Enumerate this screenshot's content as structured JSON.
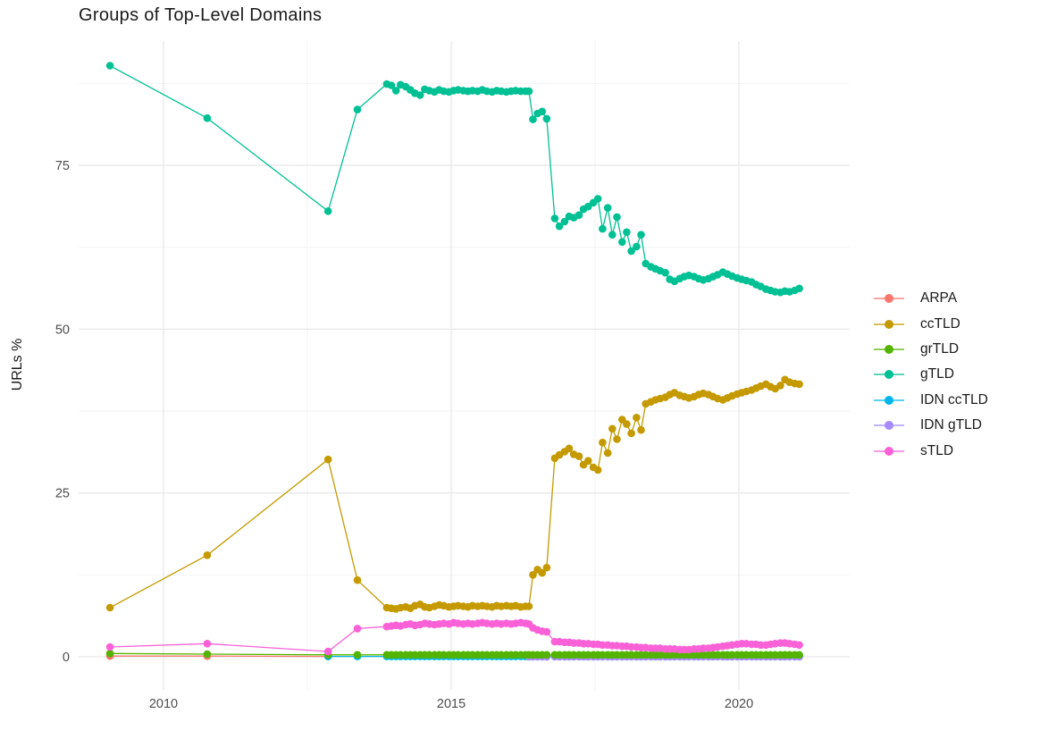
{
  "chart_data": {
    "type": "line",
    "title": "Groups of Top-Level Domains",
    "xlabel": "",
    "ylabel": "URLs %",
    "x_ticks": [
      2010,
      2015,
      2020
    ],
    "x_minor": [
      2012.5,
      2017.5
    ],
    "y_ticks": [
      0,
      25,
      50,
      75
    ],
    "y_minor": [
      12.5,
      37.5,
      62.5,
      87.5
    ],
    "xlim": [
      2008.525,
      2021.925
    ],
    "ylim": [
      -5.05,
      93.95
    ],
    "grid": true,
    "legend_position": "right",
    "colors": {
      "grid_major": "#e6e6e6",
      "grid_minor": "#f2f2f2",
      "axis_text": "#4d4d4d",
      "title_text": "#1a1a1a"
    },
    "draw_order": [
      "ARPA",
      "IDN ccTLD",
      "IDN gTLD",
      "grTLD",
      "ccTLD",
      "gTLD",
      "sTLD"
    ],
    "series": [
      {
        "name": "ARPA",
        "color": "#F8766D",
        "x": [
          2009.07,
          2010.76,
          2012.86
        ],
        "y": [
          0.1,
          0.1,
          0.05
        ]
      },
      {
        "name": "ccTLD",
        "color": "#C49A00",
        "x": [
          2009.07,
          2010.76,
          2012.86,
          2013.37,
          2013.88,
          2013.96,
          2014.04,
          2014.12,
          2014.21,
          2014.29,
          2014.37,
          2014.46,
          2014.54,
          2014.62,
          2014.71,
          2014.79,
          2014.87,
          2014.96,
          2015.04,
          2015.12,
          2015.21,
          2015.29,
          2015.37,
          2015.46,
          2015.54,
          2015.62,
          2015.71,
          2015.79,
          2015.87,
          2015.96,
          2016.04,
          2016.12,
          2016.21,
          2016.29,
          2016.35,
          2016.42,
          2016.5,
          2016.58,
          2016.66,
          2016.8,
          2016.88,
          2016.97,
          2017.05,
          2017.13,
          2017.22,
          2017.3,
          2017.38,
          2017.47,
          2017.55,
          2017.63,
          2017.72,
          2017.8,
          2017.88,
          2017.97,
          2018.05,
          2018.13,
          2018.22,
          2018.3,
          2018.38,
          2018.47,
          2018.55,
          2018.63,
          2018.72,
          2018.8,
          2018.88,
          2018.97,
          2019.05,
          2019.13,
          2019.22,
          2019.3,
          2019.38,
          2019.47,
          2019.55,
          2019.63,
          2019.72,
          2019.8,
          2019.88,
          2019.97,
          2020.05,
          2020.13,
          2020.22,
          2020.3,
          2020.38,
          2020.47,
          2020.55,
          2020.63,
          2020.72,
          2020.8,
          2020.88,
          2020.97,
          2021.05
        ],
        "y": [
          7.5,
          15.5,
          30.1,
          11.7,
          7.5,
          7.4,
          7.3,
          7.5,
          7.6,
          7.4,
          7.8,
          8.0,
          7.6,
          7.5,
          7.7,
          7.9,
          7.8,
          7.6,
          7.7,
          7.8,
          7.7,
          7.6,
          7.8,
          7.7,
          7.8,
          7.7,
          7.6,
          7.8,
          7.7,
          7.8,
          7.7,
          7.8,
          7.6,
          7.7,
          7.7,
          12.5,
          13.3,
          12.8,
          13.6,
          30.3,
          30.8,
          31.3,
          31.8,
          30.9,
          30.6,
          29.3,
          29.9,
          28.9,
          28.5,
          32.7,
          31.1,
          34.8,
          33.2,
          36.2,
          35.5,
          34.1,
          36.5,
          34.6,
          38.6,
          38.9,
          39.2,
          39.4,
          39.6,
          40.0,
          40.3,
          39.9,
          39.7,
          39.5,
          39.7,
          40.0,
          40.2,
          40.0,
          39.7,
          39.4,
          39.2,
          39.5,
          39.8,
          40.1,
          40.3,
          40.5,
          40.7,
          41.0,
          41.3,
          41.6,
          41.2,
          40.9,
          41.4,
          42.3,
          41.9,
          41.7,
          41.6
        ]
      },
      {
        "name": "grTLD",
        "color": "#53B400",
        "x": [
          2009.07,
          2010.76,
          2012.86,
          2013.37,
          2013.88,
          2013.96,
          2014.04,
          2014.12,
          2014.21,
          2014.29,
          2014.37,
          2014.46,
          2014.54,
          2014.62,
          2014.71,
          2014.79,
          2014.87,
          2014.96,
          2015.04,
          2015.12,
          2015.21,
          2015.29,
          2015.37,
          2015.46,
          2015.54,
          2015.62,
          2015.71,
          2015.79,
          2015.87,
          2015.96,
          2016.04,
          2016.12,
          2016.21,
          2016.29,
          2016.35,
          2016.42,
          2016.5,
          2016.58,
          2016.66,
          2016.8,
          2016.88,
          2016.97,
          2017.05,
          2017.13,
          2017.22,
          2017.3,
          2017.38,
          2017.47,
          2017.55,
          2017.63,
          2017.72,
          2017.8,
          2017.88,
          2017.97,
          2018.05,
          2018.13,
          2018.22,
          2018.3,
          2018.38,
          2018.47,
          2018.55,
          2018.63,
          2018.72,
          2018.8,
          2018.88,
          2018.97,
          2019.05,
          2019.13,
          2019.22,
          2019.3,
          2019.38,
          2019.47,
          2019.55,
          2019.63,
          2019.72,
          2019.8,
          2019.88,
          2019.97,
          2020.05,
          2020.13,
          2020.22,
          2020.3,
          2020.38,
          2020.47,
          2020.55,
          2020.63,
          2020.72,
          2020.8,
          2020.88,
          2020.97,
          2021.05
        ],
        "y": [
          0.5,
          0.4,
          0.3,
          0.3,
          0.3,
          0.3,
          0.3,
          0.3,
          0.3,
          0.3,
          0.3,
          0.3,
          0.3,
          0.3,
          0.3,
          0.3,
          0.3,
          0.3,
          0.3,
          0.3,
          0.3,
          0.3,
          0.3,
          0.3,
          0.3,
          0.3,
          0.3,
          0.3,
          0.3,
          0.3,
          0.3,
          0.3,
          0.3,
          0.3,
          0.3,
          0.3,
          0.3,
          0.3,
          0.3,
          0.3,
          0.3,
          0.3,
          0.3,
          0.3,
          0.3,
          0.3,
          0.3,
          0.3,
          0.3,
          0.3,
          0.3,
          0.3,
          0.3,
          0.3,
          0.3,
          0.3,
          0.3,
          0.3,
          0.3,
          0.3,
          0.3,
          0.3,
          0.3,
          0.3,
          0.3,
          0.3,
          0.3,
          0.3,
          0.3,
          0.3,
          0.3,
          0.3,
          0.3,
          0.3,
          0.3,
          0.3,
          0.3,
          0.3,
          0.3,
          0.3,
          0.3,
          0.3,
          0.3,
          0.3,
          0.3,
          0.3,
          0.3,
          0.3,
          0.3,
          0.3,
          0.3
        ]
      },
      {
        "name": "gTLD",
        "color": "#00C094",
        "x": [
          2009.07,
          2010.76,
          2012.86,
          2013.37,
          2013.88,
          2013.96,
          2014.04,
          2014.12,
          2014.21,
          2014.29,
          2014.37,
          2014.46,
          2014.54,
          2014.62,
          2014.71,
          2014.79,
          2014.87,
          2014.96,
          2015.04,
          2015.12,
          2015.21,
          2015.29,
          2015.37,
          2015.46,
          2015.54,
          2015.62,
          2015.71,
          2015.79,
          2015.87,
          2015.96,
          2016.04,
          2016.12,
          2016.21,
          2016.29,
          2016.35,
          2016.42,
          2016.5,
          2016.58,
          2016.66,
          2016.8,
          2016.88,
          2016.97,
          2017.05,
          2017.13,
          2017.22,
          2017.3,
          2017.38,
          2017.47,
          2017.55,
          2017.63,
          2017.72,
          2017.8,
          2017.88,
          2017.97,
          2018.05,
          2018.13,
          2018.22,
          2018.3,
          2018.38,
          2018.47,
          2018.55,
          2018.63,
          2018.72,
          2018.8,
          2018.88,
          2018.97,
          2019.05,
          2019.13,
          2019.22,
          2019.3,
          2019.38,
          2019.47,
          2019.55,
          2019.63,
          2019.72,
          2019.8,
          2019.88,
          2019.97,
          2020.05,
          2020.13,
          2020.22,
          2020.3,
          2020.38,
          2020.47,
          2020.55,
          2020.63,
          2020.72,
          2020.8,
          2020.88,
          2020.97,
          2021.05
        ],
        "y": [
          90.2,
          82.2,
          68.0,
          83.5,
          87.4,
          87.2,
          86.4,
          87.3,
          87.0,
          86.5,
          86.0,
          85.7,
          86.6,
          86.4,
          86.2,
          86.5,
          86.3,
          86.2,
          86.4,
          86.5,
          86.4,
          86.3,
          86.4,
          86.3,
          86.5,
          86.3,
          86.2,
          86.4,
          86.3,
          86.2,
          86.3,
          86.4,
          86.3,
          86.3,
          86.3,
          82.0,
          82.9,
          83.2,
          82.1,
          66.9,
          65.7,
          66.4,
          67.2,
          67.0,
          67.4,
          68.3,
          68.7,
          69.3,
          69.9,
          65.3,
          68.5,
          64.4,
          67.1,
          63.3,
          64.8,
          61.9,
          62.6,
          64.4,
          60.0,
          59.5,
          59.2,
          58.9,
          58.6,
          57.6,
          57.3,
          57.7,
          58.0,
          58.2,
          58.0,
          57.7,
          57.5,
          57.7,
          58.0,
          58.3,
          58.7,
          58.4,
          58.1,
          57.8,
          57.6,
          57.4,
          57.2,
          56.8,
          56.5,
          56.1,
          55.9,
          55.7,
          55.6,
          55.8,
          55.7,
          55.9,
          56.2
        ]
      },
      {
        "name": "IDN ccTLD",
        "color": "#00B6EB",
        "x": [
          2012.86,
          2013.37,
          2013.88,
          2013.96,
          2014.04,
          2014.12,
          2014.21,
          2014.29,
          2014.37,
          2014.46,
          2014.54,
          2014.62,
          2014.71,
          2014.79,
          2014.87,
          2014.96,
          2015.04,
          2015.12,
          2015.21,
          2015.29,
          2015.37,
          2015.46,
          2015.54,
          2015.62,
          2015.71,
          2015.79,
          2015.87,
          2015.96,
          2016.04,
          2016.12,
          2016.21,
          2016.29,
          2016.35,
          2016.42,
          2016.5,
          2016.58,
          2016.66,
          2016.8,
          2016.88,
          2016.97,
          2017.05,
          2017.13,
          2017.22,
          2017.3,
          2017.38,
          2017.47,
          2017.55,
          2017.63,
          2017.72,
          2017.8,
          2017.88,
          2017.97,
          2018.05,
          2018.13,
          2018.22,
          2018.3,
          2018.38,
          2018.47,
          2018.55,
          2018.63,
          2018.72,
          2018.8,
          2018.88,
          2018.97,
          2019.05,
          2019.13,
          2019.22,
          2019.3,
          2019.38,
          2019.47,
          2019.55,
          2019.63,
          2019.72,
          2019.8,
          2019.88,
          2019.97,
          2020.05,
          2020.13,
          2020.22,
          2020.3,
          2020.38,
          2020.47,
          2020.55,
          2020.63,
          2020.72,
          2020.8,
          2020.88,
          2020.97,
          2021.05
        ],
        "y": [
          0.05,
          0.05,
          0.05,
          0.05,
          0.05,
          0.05,
          0.05,
          0.05,
          0.05,
          0.05,
          0.05,
          0.05,
          0.05,
          0.05,
          0.05,
          0.05,
          0.05,
          0.05,
          0.05,
          0.05,
          0.05,
          0.05,
          0.05,
          0.05,
          0.05,
          0.05,
          0.05,
          0.05,
          0.05,
          0.05,
          0.05,
          0.05,
          0.05,
          0.05,
          0.05,
          0.05,
          0.05,
          0.05,
          0.05,
          0.05,
          0.05,
          0.05,
          0.05,
          0.05,
          0.05,
          0.05,
          0.05,
          0.05,
          0.05,
          0.05,
          0.05,
          0.05,
          0.05,
          0.05,
          0.05,
          0.05,
          0.05,
          0.05,
          0.05,
          0.05,
          0.05,
          0.05,
          0.05,
          0.05,
          0.05,
          0.05,
          0.05,
          0.05,
          0.05,
          0.05,
          0.05,
          0.05,
          0.05,
          0.05,
          0.05,
          0.05,
          0.05,
          0.05,
          0.05,
          0.05,
          0.05,
          0.05,
          0.05,
          0.05,
          0.05,
          0.05,
          0.05,
          0.05,
          0.05
        ]
      },
      {
        "name": "IDN gTLD",
        "color": "#A58AFF",
        "x": [
          2016.35,
          2016.42,
          2016.5,
          2016.58,
          2016.66,
          2016.8,
          2016.88,
          2016.97,
          2017.05,
          2017.13,
          2017.22,
          2017.3,
          2017.38,
          2017.47,
          2017.55,
          2017.63,
          2017.72,
          2017.8,
          2017.88,
          2017.97,
          2018.05,
          2018.13,
          2018.22,
          2018.3,
          2018.38,
          2018.47,
          2018.55,
          2018.63,
          2018.72,
          2018.8,
          2018.88,
          2018.97,
          2019.05,
          2019.13,
          2019.22,
          2019.3,
          2019.38,
          2019.47,
          2019.55,
          2019.63,
          2019.72,
          2019.8,
          2019.88,
          2019.97,
          2020.05,
          2020.13,
          2020.22,
          2020.3,
          2020.38,
          2020.47,
          2020.55,
          2020.63,
          2020.72,
          2020.8,
          2020.88,
          2020.97,
          2021.05
        ],
        "y": [
          0.0,
          0.0,
          0.0,
          0.0,
          0.0,
          0.0,
          0.0,
          0.0,
          0.0,
          0.0,
          0.0,
          0.0,
          0.0,
          0.0,
          0.0,
          0.0,
          0.0,
          0.0,
          0.0,
          0.0,
          0.0,
          0.0,
          0.0,
          0.0,
          0.0,
          0.0,
          0.0,
          0.0,
          0.0,
          0.0,
          0.0,
          0.0,
          0.0,
          0.0,
          0.0,
          0.0,
          0.0,
          0.0,
          0.0,
          0.0,
          0.0,
          0.0,
          0.0,
          0.0,
          0.0,
          0.0,
          0.0,
          0.0,
          0.0,
          0.0,
          0.0,
          0.0,
          0.0,
          0.0,
          0.0,
          0.0,
          0.0
        ]
      },
      {
        "name": "sTLD",
        "color": "#FB61D7",
        "x": [
          2009.07,
          2010.76,
          2012.86,
          2013.37,
          2013.88,
          2013.96,
          2014.04,
          2014.12,
          2014.21,
          2014.29,
          2014.37,
          2014.46,
          2014.54,
          2014.62,
          2014.71,
          2014.79,
          2014.87,
          2014.96,
          2015.04,
          2015.12,
          2015.21,
          2015.29,
          2015.37,
          2015.46,
          2015.54,
          2015.62,
          2015.71,
          2015.79,
          2015.87,
          2015.96,
          2016.04,
          2016.12,
          2016.21,
          2016.29,
          2016.35,
          2016.42,
          2016.5,
          2016.58,
          2016.66,
          2016.8,
          2016.88,
          2016.97,
          2017.05,
          2017.13,
          2017.22,
          2017.3,
          2017.38,
          2017.47,
          2017.55,
          2017.63,
          2017.72,
          2017.8,
          2017.88,
          2017.97,
          2018.05,
          2018.13,
          2018.22,
          2018.3,
          2018.38,
          2018.47,
          2018.55,
          2018.63,
          2018.72,
          2018.8,
          2018.88,
          2018.97,
          2019.05,
          2019.13,
          2019.22,
          2019.3,
          2019.38,
          2019.47,
          2019.55,
          2019.63,
          2019.72,
          2019.8,
          2019.88,
          2019.97,
          2020.05,
          2020.13,
          2020.22,
          2020.3,
          2020.38,
          2020.47,
          2020.55,
          2020.63,
          2020.72,
          2020.8,
          2020.88,
          2020.97,
          2021.05
        ],
        "y": [
          1.5,
          2.0,
          0.8,
          4.3,
          4.6,
          4.7,
          4.8,
          4.7,
          4.9,
          5.0,
          4.8,
          4.9,
          5.1,
          5.0,
          4.9,
          5.0,
          5.1,
          5.0,
          5.2,
          5.1,
          5.0,
          5.1,
          5.0,
          5.1,
          5.2,
          5.1,
          5.0,
          5.1,
          5.0,
          5.1,
          5.0,
          5.1,
          5.2,
          5.1,
          5.0,
          4.4,
          4.1,
          3.9,
          3.8,
          2.3,
          2.3,
          2.2,
          2.2,
          2.1,
          2.1,
          2.0,
          2.0,
          1.9,
          1.9,
          1.8,
          1.8,
          1.7,
          1.7,
          1.6,
          1.6,
          1.5,
          1.5,
          1.4,
          1.4,
          1.3,
          1.3,
          1.3,
          1.2,
          1.2,
          1.2,
          1.1,
          1.1,
          1.1,
          1.2,
          1.2,
          1.3,
          1.3,
          1.4,
          1.5,
          1.6,
          1.7,
          1.8,
          1.9,
          2.0,
          2.0,
          1.9,
          1.9,
          1.8,
          1.8,
          1.9,
          2.0,
          2.1,
          2.1,
          2.0,
          1.9,
          1.8
        ]
      }
    ]
  }
}
